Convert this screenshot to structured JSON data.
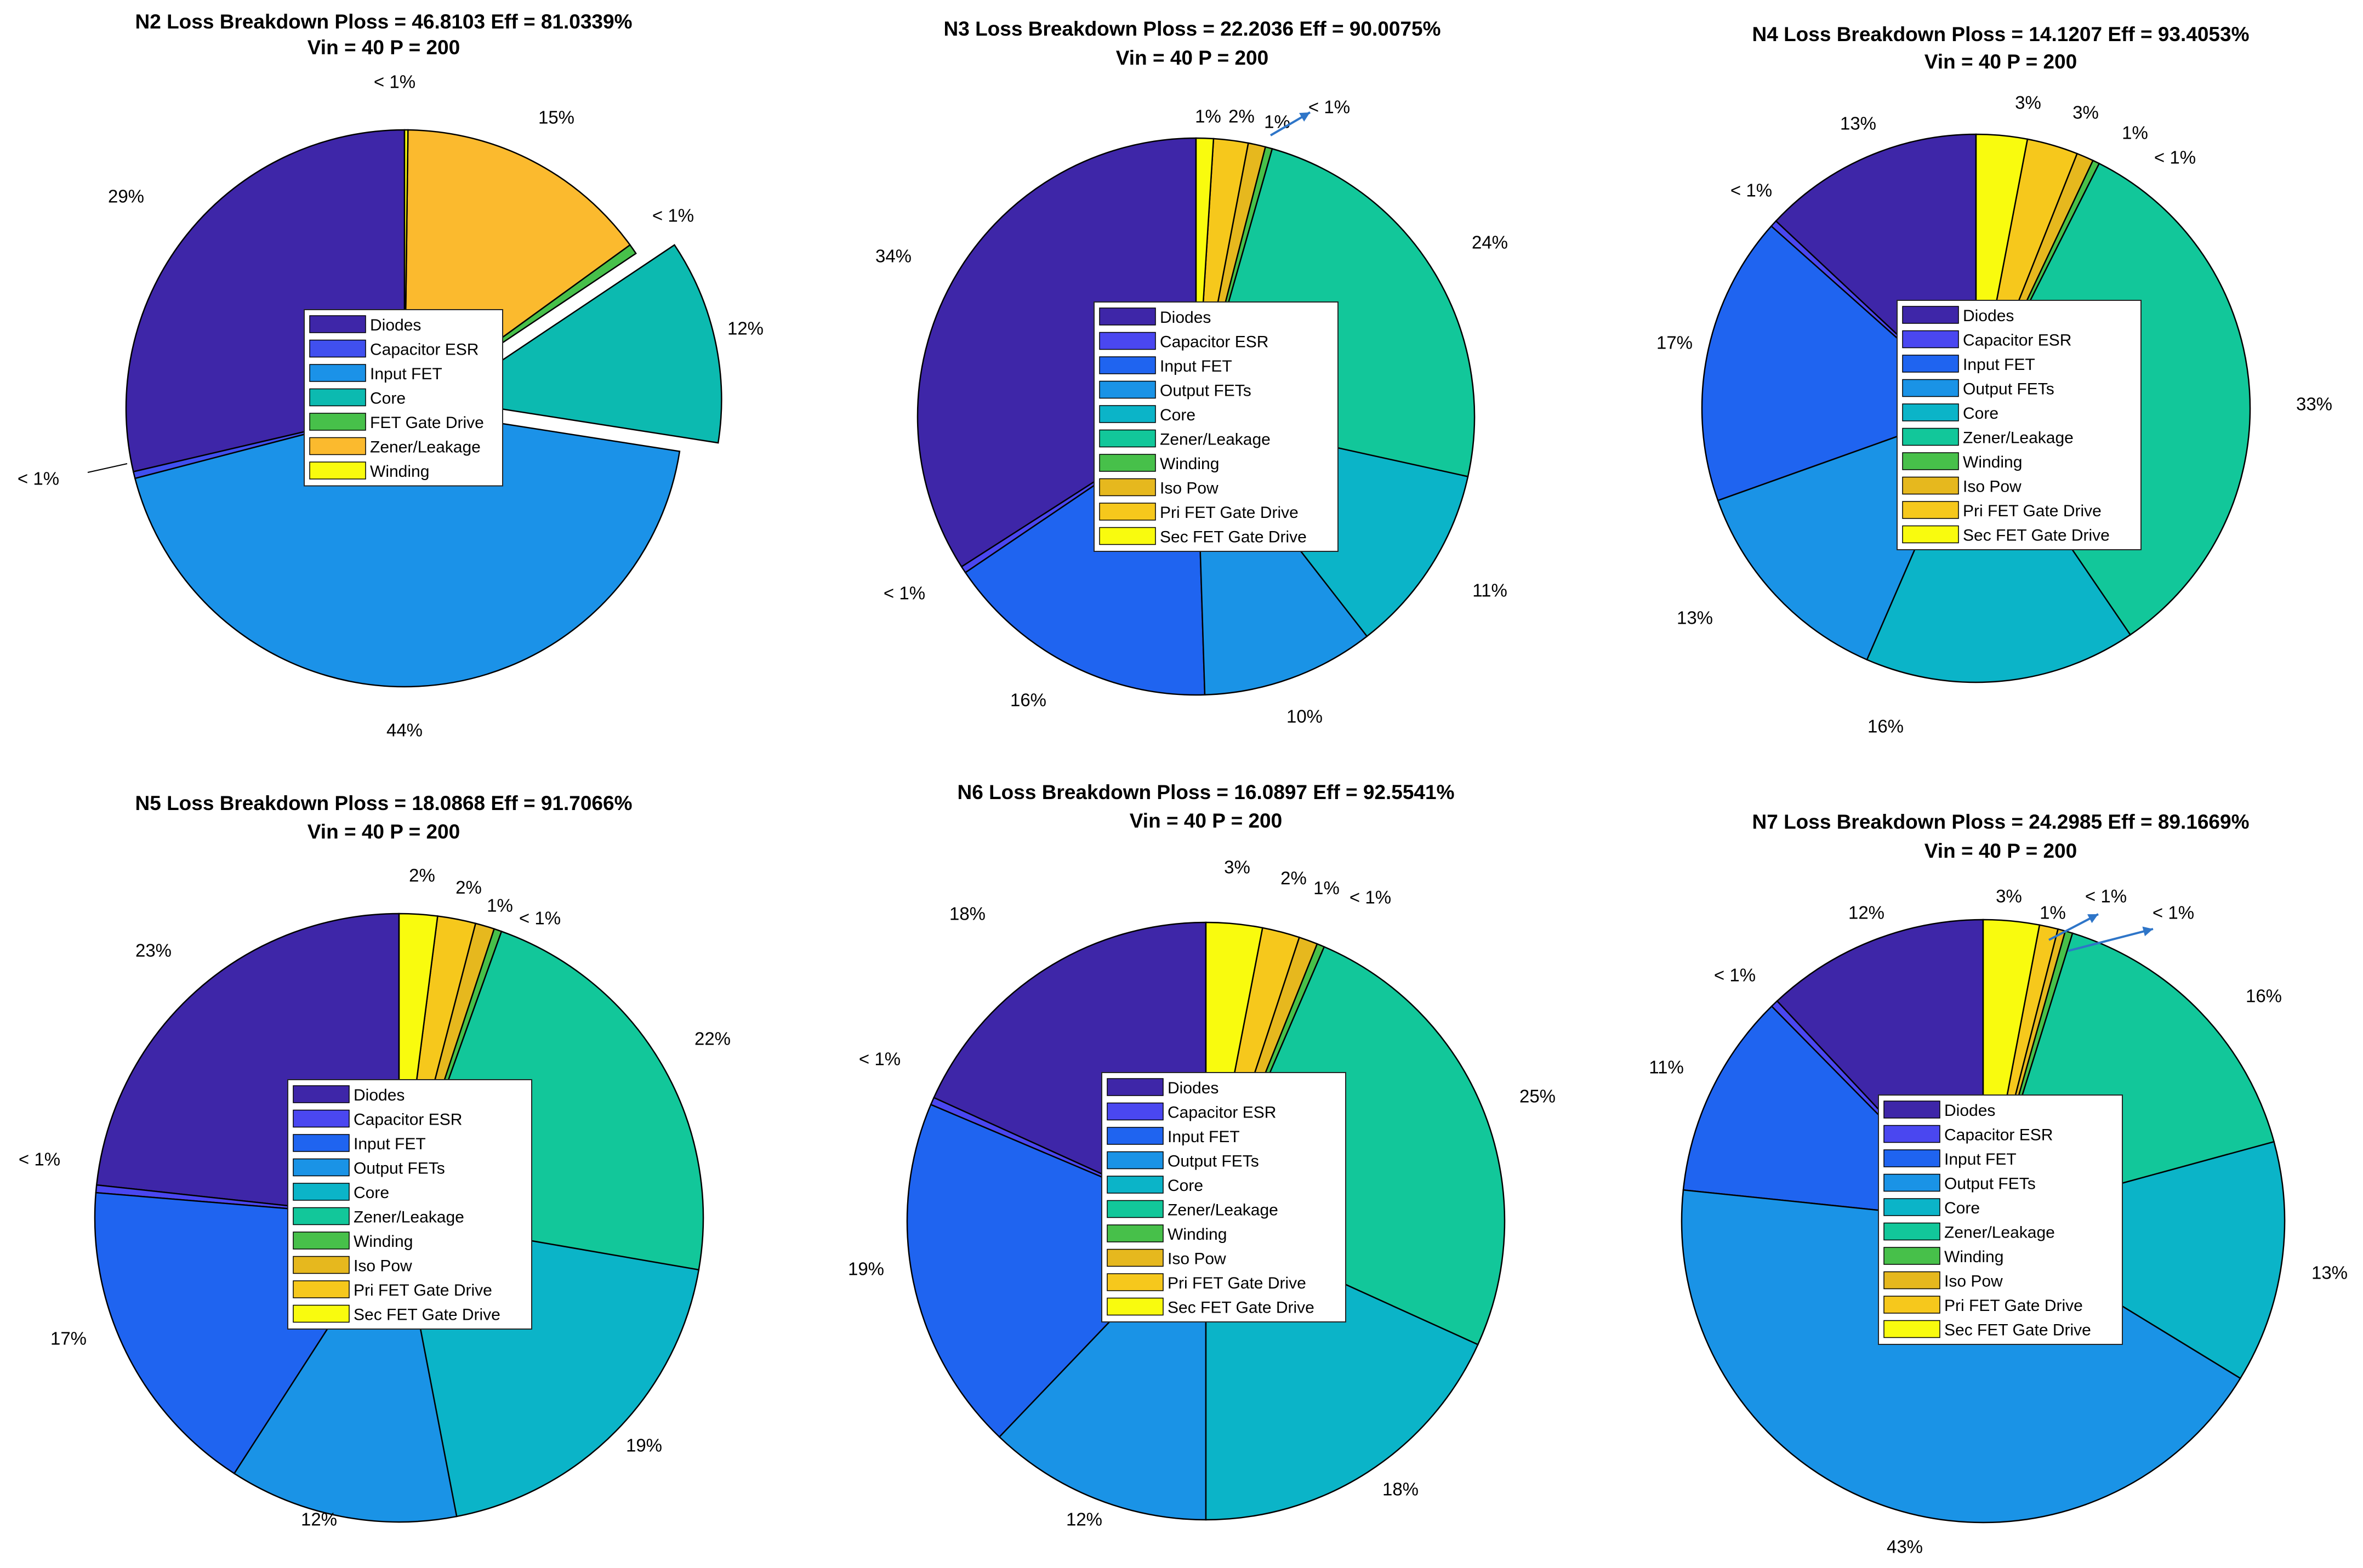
{
  "chart_data": [
    {
      "type": "pie",
      "panel": "N2",
      "title": "N2 Loss Breakdown Ploss = 46.8103 Eff = 81.0339%",
      "subtitle": "Vin = 40 P = 200",
      "slices": [
        {
          "name": "Diodes",
          "value": 0.29,
          "label": "29%",
          "color": "#3e26a8"
        },
        {
          "name": "Capacitor ESR",
          "value": 0.004,
          "label": "< 1%",
          "color": "#4050ef"
        },
        {
          "name": "Input FET",
          "value": 0.44,
          "label": "44%",
          "color": "#1b92e8"
        },
        {
          "name": "Core",
          "value": 0.12,
          "label": "12%",
          "color": "#0cbab0",
          "exploded": true
        },
        {
          "name": "FET Gate Drive",
          "value": 0.006,
          "label": "< 1%",
          "color": "#47c04a"
        },
        {
          "name": "Zener/Leakage",
          "value": 0.15,
          "label": "15%",
          "color": "#fbba2e"
        },
        {
          "name": "Winding",
          "value": 0.002,
          "label": "< 1%",
          "color": "#f9fb0e"
        }
      ]
    },
    {
      "type": "pie",
      "panel": "N3",
      "title": "N3 Loss Breakdown Ploss = 22.2036 Eff = 90.0075%",
      "subtitle": "Vin = 40 P = 200",
      "slices": [
        {
          "name": "Diodes",
          "value": 0.34,
          "label": "34%",
          "color": "#3e26a8"
        },
        {
          "name": "Capacitor ESR",
          "value": 0.004,
          "label": "< 1%",
          "color": "#4a47f0"
        },
        {
          "name": "Input FET",
          "value": 0.16,
          "label": "16%",
          "color": "#1f64f0"
        },
        {
          "name": "Output FETs",
          "value": 0.1,
          "label": "10%",
          "color": "#1a93e6"
        },
        {
          "name": "Core",
          "value": 0.11,
          "label": "11%",
          "color": "#0bb4c8"
        },
        {
          "name": "Zener/Leakage",
          "value": 0.24,
          "label": "24%",
          "color": "#12c79a"
        },
        {
          "name": "Winding",
          "value": 0.004,
          "label": "< 1%",
          "color": "#47c04a"
        },
        {
          "name": "Iso Pow",
          "value": 0.01,
          "label": "1%",
          "color": "#e6b81e"
        },
        {
          "name": "Pri FET Gate Drive",
          "value": 0.02,
          "label": "2%",
          "color": "#f6c81c"
        },
        {
          "name": "Sec FET Gate Drive",
          "value": 0.01,
          "label": "1%",
          "color": "#f9fb0e"
        }
      ]
    },
    {
      "type": "pie",
      "panel": "N4",
      "title": "N4 Loss Breakdown Ploss = 14.1207 Eff = 93.4053%",
      "subtitle": "Vin = 40 P = 200",
      "slices": [
        {
          "name": "Diodes",
          "value": 0.13,
          "label": "13%",
          "color": "#3e26a8"
        },
        {
          "name": "Capacitor ESR",
          "value": 0.004,
          "label": "< 1%",
          "color": "#4a47f0"
        },
        {
          "name": "Input FET",
          "value": 0.17,
          "label": "17%",
          "color": "#1f64f0"
        },
        {
          "name": "Output FETs",
          "value": 0.13,
          "label": "13%",
          "color": "#1a93e6"
        },
        {
          "name": "Core",
          "value": 0.16,
          "label": "16%",
          "color": "#0bb4c8"
        },
        {
          "name": "Zener/Leakage",
          "value": 0.33,
          "label": "33%",
          "color": "#12c79a"
        },
        {
          "name": "Winding",
          "value": 0.004,
          "label": "< 1%",
          "color": "#47c04a"
        },
        {
          "name": "Iso Pow",
          "value": 0.01,
          "label": "1%",
          "color": "#e6b81e"
        },
        {
          "name": "Pri FET Gate Drive",
          "value": 0.03,
          "label": "3%",
          "color": "#f6c81c"
        },
        {
          "name": "Sec FET Gate Drive",
          "value": 0.03,
          "label": "3%",
          "color": "#f9fb0e"
        }
      ]
    },
    {
      "type": "pie",
      "panel": "N5",
      "title": "N5 Loss Breakdown Ploss = 18.0868 Eff = 91.7066%",
      "subtitle": "Vin = 40 P = 200",
      "slices": [
        {
          "name": "Diodes",
          "value": 0.23,
          "label": "23%",
          "color": "#3e26a8"
        },
        {
          "name": "Capacitor ESR",
          "value": 0.004,
          "label": "< 1%",
          "color": "#4a47f0"
        },
        {
          "name": "Input FET",
          "value": 0.17,
          "label": "17%",
          "color": "#1f64f0"
        },
        {
          "name": "Output FETs",
          "value": 0.12,
          "label": "12%",
          "color": "#1a93e6"
        },
        {
          "name": "Core",
          "value": 0.19,
          "label": "19%",
          "color": "#0bb4c8"
        },
        {
          "name": "Zener/Leakage",
          "value": 0.22,
          "label": "22%",
          "color": "#12c79a"
        },
        {
          "name": "Winding",
          "value": 0.004,
          "label": "< 1%",
          "color": "#47c04a"
        },
        {
          "name": "Iso Pow",
          "value": 0.01,
          "label": "1%",
          "color": "#e6b81e"
        },
        {
          "name": "Pri FET Gate Drive",
          "value": 0.02,
          "label": "2%",
          "color": "#f6c81c"
        },
        {
          "name": "Sec FET Gate Drive",
          "value": 0.02,
          "label": "2%",
          "color": "#f9fb0e"
        }
      ]
    },
    {
      "type": "pie",
      "panel": "N6",
      "title": "N6 Loss Breakdown Ploss = 16.0897 Eff = 92.5541%",
      "subtitle": "Vin = 40 P = 200",
      "slices": [
        {
          "name": "Diodes",
          "value": 0.18,
          "label": "18%",
          "color": "#3e26a8"
        },
        {
          "name": "Capacitor ESR",
          "value": 0.004,
          "label": "< 1%",
          "color": "#4a47f0"
        },
        {
          "name": "Input FET",
          "value": 0.19,
          "label": "19%",
          "color": "#1f64f0"
        },
        {
          "name": "Output FETs",
          "value": 0.12,
          "label": "12%",
          "color": "#1a93e6"
        },
        {
          "name": "Core",
          "value": 0.18,
          "label": "18%",
          "color": "#0bb4c8"
        },
        {
          "name": "Zener/Leakage",
          "value": 0.25,
          "label": "25%",
          "color": "#12c79a"
        },
        {
          "name": "Winding",
          "value": 0.004,
          "label": "< 1%",
          "color": "#47c04a"
        },
        {
          "name": "Iso Pow",
          "value": 0.01,
          "label": "1%",
          "color": "#e6b81e"
        },
        {
          "name": "Pri FET Gate Drive",
          "value": 0.02,
          "label": "2%",
          "color": "#f6c81c"
        },
        {
          "name": "Sec FET Gate Drive",
          "value": 0.03,
          "label": "3%",
          "color": "#f9fb0e"
        }
      ]
    },
    {
      "type": "pie",
      "panel": "N7",
      "title": "N7 Loss Breakdown Ploss = 24.2985 Eff = 89.1669%",
      "subtitle": "Vin = 40 P = 200",
      "slices": [
        {
          "name": "Diodes",
          "value": 0.12,
          "label": "12%",
          "color": "#3e26a8"
        },
        {
          "name": "Capacitor ESR",
          "value": 0.004,
          "label": "< 1%",
          "color": "#4a47f0"
        },
        {
          "name": "Input FET",
          "value": 0.11,
          "label": "11%",
          "color": "#1f64f0"
        },
        {
          "name": "Output FETs",
          "value": 0.43,
          "label": "43%",
          "color": "#1a93e6"
        },
        {
          "name": "Core",
          "value": 0.13,
          "label": "13%",
          "color": "#0bb4c8"
        },
        {
          "name": "Zener/Leakage",
          "value": 0.16,
          "label": "16%",
          "color": "#12c79a"
        },
        {
          "name": "Winding",
          "value": 0.004,
          "label": "< 1%",
          "color": "#47c04a"
        },
        {
          "name": "Iso Pow",
          "value": 0.004,
          "label": "< 1%",
          "color": "#e6b81e"
        },
        {
          "name": "Pri FET Gate Drive",
          "value": 0.01,
          "label": "1%",
          "color": "#f6c81c"
        },
        {
          "name": "Sec FET Gate Drive",
          "value": 0.03,
          "label": "3%",
          "color": "#f9fb0e"
        }
      ]
    }
  ]
}
